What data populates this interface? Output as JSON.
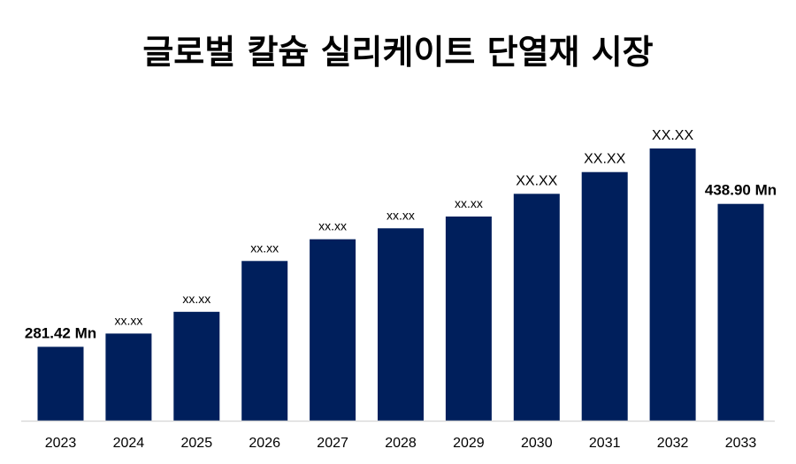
{
  "chart_data": {
    "type": "bar",
    "title": "글로벌 칼슘 실리케이트 단열재 시장",
    "categories": [
      "2023",
      "2024",
      "2025",
      "2026",
      "2027",
      "2028",
      "2029",
      "2030",
      "2031",
      "2032",
      "2033"
    ],
    "values": [
      281.42,
      296,
      320,
      376,
      400,
      412,
      425,
      450,
      474,
      500,
      438.9
    ],
    "data_labels": [
      "281.42 Mn",
      "xx.xx",
      "xx.xx",
      "xx.xx",
      "xx.xx",
      "xx.xx",
      "xx.xx",
      "XX.XX",
      "XX.XX",
      "XX.XX",
      "438.90 Mn"
    ],
    "ylim": [
      200,
      500
    ],
    "grid": false,
    "legend": "none",
    "colors": {
      "bar": "#001f5c",
      "axis": "#d9d9d9",
      "text": "#000000"
    }
  }
}
